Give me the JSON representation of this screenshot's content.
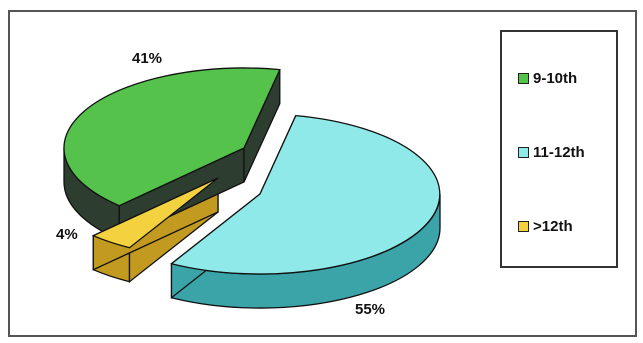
{
  "chart_data": {
    "type": "pie",
    "categories": [
      "9-10th",
      "11-12th",
      ">12th"
    ],
    "values": [
      41,
      55,
      4
    ],
    "data_labels": [
      "41%",
      "55%",
      "4%"
    ],
    "colors": [
      "#55c34b",
      "#8fe9e8",
      "#f4d23f"
    ],
    "side_colors": [
      "#2d3d2f",
      "#3aa4a8",
      "#c39a20"
    ],
    "legend_position": "right",
    "three_d": true,
    "exploded": true
  }
}
